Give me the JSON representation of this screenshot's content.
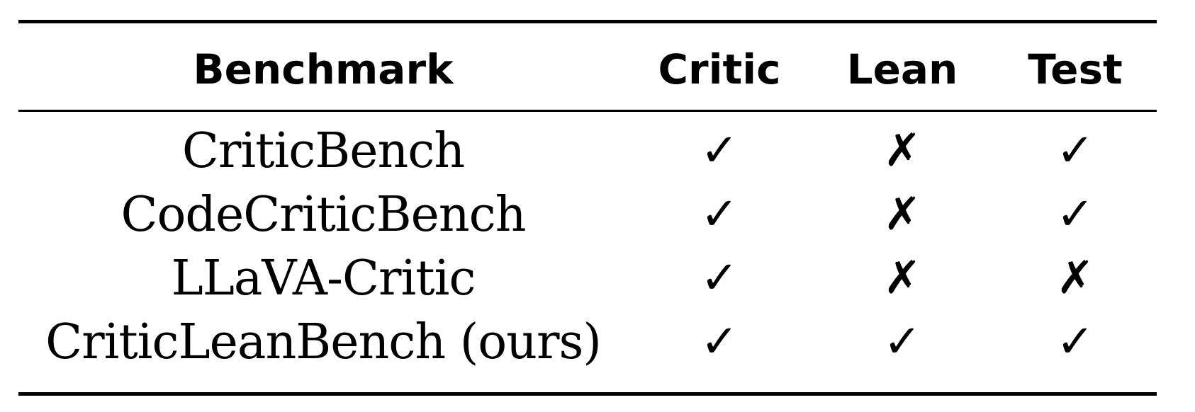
{
  "table": {
    "headers": {
      "benchmark": "Benchmark",
      "critic": "Critic",
      "lean": "Lean",
      "test": "Test"
    },
    "rows": [
      {
        "benchmark": "CriticBench",
        "critic": "✓",
        "lean": "✗",
        "test": "✓"
      },
      {
        "benchmark": "CodeCriticBench",
        "critic": "✓",
        "lean": "✗",
        "test": "✓"
      },
      {
        "benchmark": "LLaVA-Critic",
        "critic": "✓",
        "lean": "✗",
        "test": "✗"
      },
      {
        "benchmark": "CriticLeanBench (ours)",
        "critic": "✓",
        "lean": "✓",
        "test": "✓"
      }
    ]
  }
}
